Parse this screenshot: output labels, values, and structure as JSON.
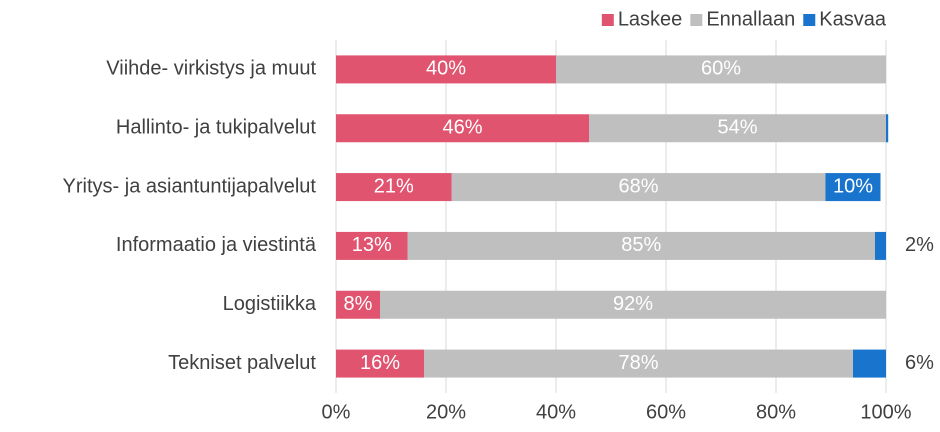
{
  "chart_data": {
    "type": "bar",
    "orientation": "horizontal",
    "stacked": true,
    "categories": [
      "Viihde- virkistys ja muut",
      "Hallinto- ja tukipalvelut",
      "Yritys- ja asiantuntijapalvelut",
      "Informaatio ja viestintä",
      "Logistiikka",
      "Tekniset palvelut"
    ],
    "series": [
      {
        "name": "Laskee",
        "color": "#e05470",
        "values": [
          40,
          46,
          21,
          13,
          8,
          16
        ],
        "value_labels": [
          "40%",
          "46%",
          "21%",
          "13%",
          "8%",
          "16%"
        ]
      },
      {
        "name": "Ennallaan",
        "color": "#bfbfbf",
        "values": [
          60,
          54,
          68,
          85,
          92,
          78
        ],
        "value_labels": [
          "60%",
          "54%",
          "68%",
          "85%",
          "92%",
          "78%"
        ]
      },
      {
        "name": "Kasvaa",
        "color": "#1874cd",
        "values": [
          0,
          0.4,
          10,
          2,
          0,
          6
        ],
        "value_labels": [
          null,
          null,
          "10%",
          "2%",
          null,
          "6%"
        ]
      }
    ],
    "xlim": [
      0,
      100
    ],
    "xticks": [
      {
        "value": 0,
        "label": "0%"
      },
      {
        "value": 20,
        "label": "20%"
      },
      {
        "value": 40,
        "label": "40%"
      },
      {
        "value": 60,
        "label": "60%"
      },
      {
        "value": 80,
        "label": "80%"
      },
      {
        "value": 100,
        "label": "100%"
      }
    ],
    "grid": true,
    "legend": "top-right"
  }
}
